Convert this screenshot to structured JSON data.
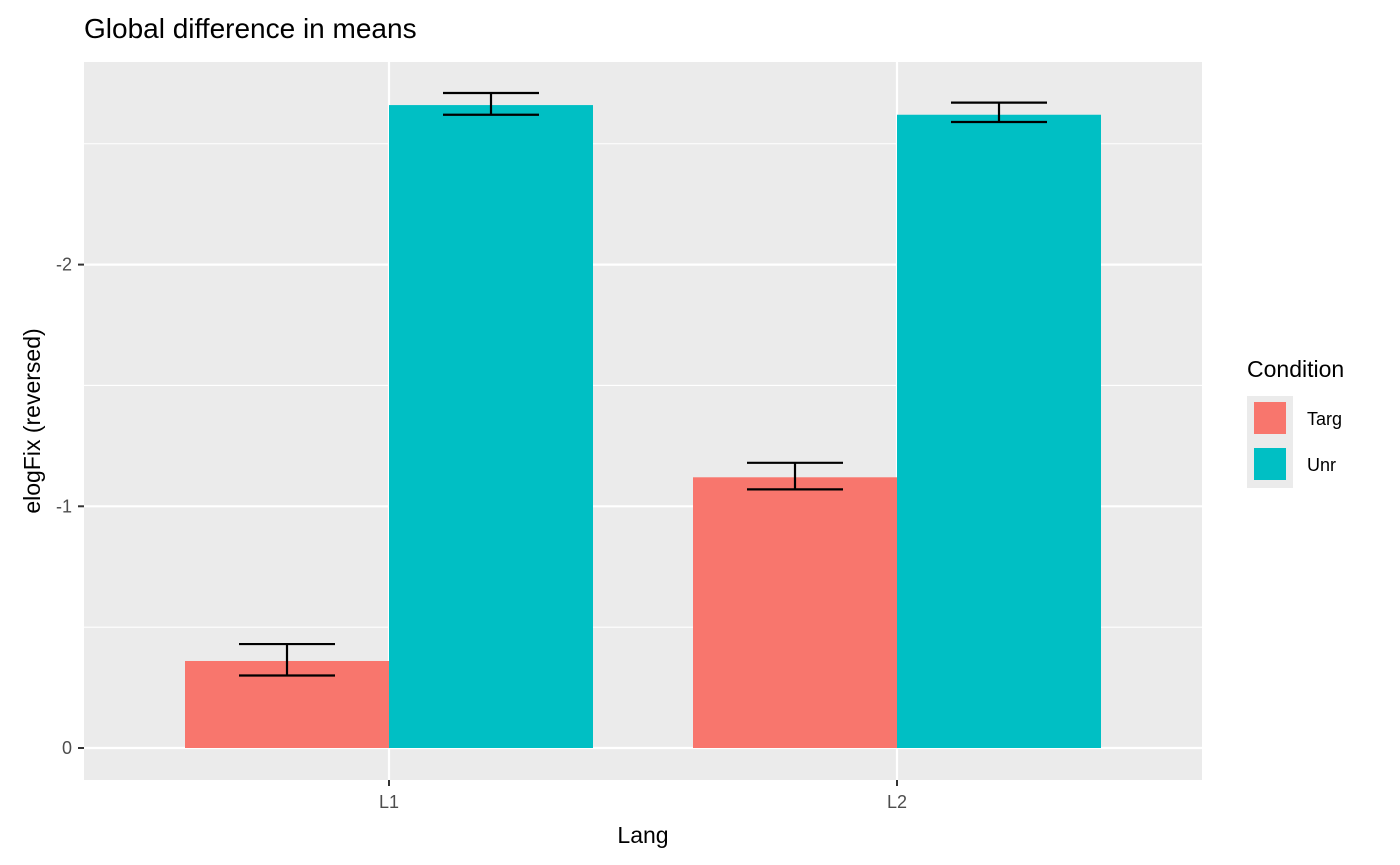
{
  "chart_data": {
    "type": "bar",
    "title": "Global difference in means",
    "xlabel": "Lang",
    "ylabel": "elogFix (reversed)",
    "categories": [
      "L1",
      "L2"
    ],
    "y_reversed": true,
    "ylim": [
      0,
      -2.72
    ],
    "yticks": [
      0,
      -1,
      -2
    ],
    "ytick_labels": [
      "0",
      "-1",
      "-2"
    ],
    "grid": true,
    "legend": {
      "title": "Condition",
      "position": "right"
    },
    "series": [
      {
        "name": "Targ",
        "color": "#F8766D",
        "values": [
          -0.36,
          -1.12
        ],
        "error_low": [
          -0.3,
          -1.07
        ],
        "error_high": [
          -0.43,
          -1.18
        ]
      },
      {
        "name": "Unr",
        "color": "#00BFC4",
        "values": [
          -2.66,
          -2.62
        ],
        "error_low": [
          -2.62,
          -2.59
        ],
        "error_high": [
          -2.71,
          -2.67
        ]
      }
    ]
  }
}
